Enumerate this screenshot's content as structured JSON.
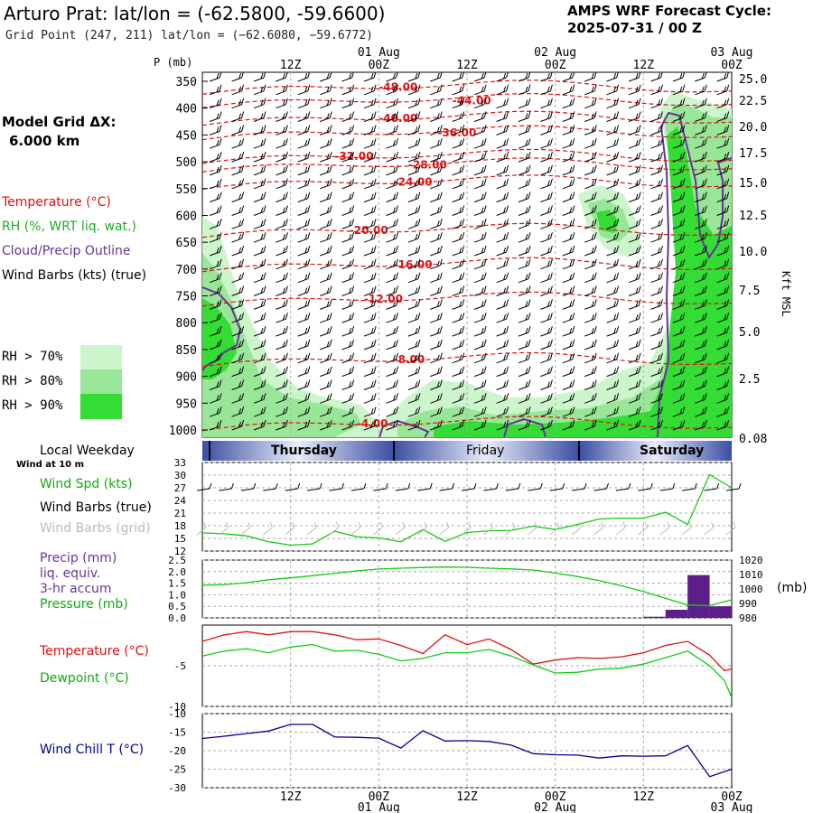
{
  "header": {
    "title": "Arturo Prat:  lat/lon = (-62.5800, -59.6600)",
    "subtitle": "Grid Point (247, 211) lat/lon = (−62.6080, −59.6772)",
    "forecast_label": "AMPS WRF Forecast Cycle:",
    "forecast_cycle": "2025-07-31 / 00  Z"
  },
  "left_panel": {
    "grid_label": "Model Grid ΔX:",
    "grid_value": "6.000 km",
    "legend": [
      {
        "text": "Temperature (°C)",
        "color": "#dd1111"
      },
      {
        "text": "RH (%, WRT liq. wat.)",
        "color": "#22aa22"
      },
      {
        "text": "Cloud/Precip Outline",
        "color": "#663399"
      },
      {
        "text": "Wind Barbs (kts) (true)",
        "color": "#000000"
      }
    ],
    "rh_legend": [
      {
        "text": "RH > 70%",
        "color": "#ccf5cc"
      },
      {
        "text": "RH > 80%",
        "color": "#99e699"
      },
      {
        "text": "RH > 90%",
        "color": "#33dd33"
      }
    ]
  },
  "colors": {
    "temperature": "#dd1111",
    "dewpoint": "#11cc11",
    "wind_chill": "#000099",
    "precip": "#5c1f8a",
    "cloud_outline": "#663399",
    "gridline": "#999999"
  },
  "time_axis": {
    "top_dates": [
      "01 Aug",
      "02 Aug",
      "03 Aug"
    ],
    "hour_ticks": [
      "12Z",
      "00Z",
      "12Z",
      "00Z",
      "12Z",
      "00Z"
    ],
    "bottom_dates": [
      "01 Aug",
      "02 Aug",
      "03 Aug"
    ],
    "pressure_axis_label": "P (mb)",
    "pressure_ticks": [
      "350",
      "400",
      "450",
      "500",
      "550",
      "600",
      "650",
      "700",
      "750",
      "800",
      "850",
      "900",
      "950",
      "1000"
    ],
    "kft_ticks": [
      "25.0",
      "22.5",
      "20.0",
      "17.5",
      "15.0",
      "12.5",
      "10.0",
      "7.5",
      "5.0",
      "2.5",
      "0.08"
    ],
    "kft_label": "Kft MSL"
  },
  "weekday_bar": {
    "label": "Local Weekday",
    "days": [
      "Thursday",
      "Friday",
      "Saturday"
    ]
  },
  "panel_labels": {
    "wind_at": "Wind at 10 m",
    "wind_spd": "Wind Spd (kts)",
    "wind_barbs_true": "Wind Barbs (true)",
    "wind_barbs_grid": "Wind Barbs (grid)",
    "precip": "Precip (mm)",
    "liq": "liq. equiv.",
    "accum": "3-hr accum",
    "pressure": "Pressure (mb)",
    "pressure_unit": "(mb)",
    "temperature": "Temperature (°C)",
    "dewpoint": "Dewpoint (°C)",
    "wind_chill": "Wind Chill T (°C)"
  },
  "chart_data": [
    {
      "type": "heatmap",
      "name": "cross-section",
      "y_axis": "pressure (mb)",
      "ylim": [
        1000,
        350
      ],
      "isotherm_labels": [
        "-48.00",
        "-44.00",
        "-40.00",
        "-36.00",
        "-32.00",
        "-28.00",
        "-24.00",
        "-20.00",
        "-16.00",
        "-12.00",
        "-8.00",
        "-4.00"
      ],
      "isotherm_levels": [
        -48,
        -44,
        -40,
        -36,
        -32,
        -28,
        -24,
        -20,
        -16,
        -12,
        -8,
        -4
      ],
      "isotherm_label_time_hours": [
        24,
        34,
        24,
        32,
        18,
        28,
        26,
        20,
        26,
        22,
        26,
        21
      ],
      "isotherm_label_pressure": [
        361,
        386,
        419,
        446,
        490,
        506,
        538,
        628,
        692,
        756,
        869,
        988
      ]
    },
    {
      "type": "line",
      "name": "wind-10m",
      "ylim": [
        12,
        33
      ],
      "y_ticks": [
        "33",
        "30",
        "27",
        "24",
        "21",
        "18",
        "15",
        "12"
      ],
      "x_hours": [
        0,
        3,
        6,
        9,
        12,
        15,
        18,
        21,
        24,
        27,
        30,
        33,
        36,
        39,
        42,
        45,
        48,
        51,
        54,
        57,
        60,
        63,
        66,
        69,
        72
      ],
      "series": [
        {
          "values": [
            16.3,
            16.1,
            15.6,
            14.2,
            13.4,
            13.7,
            16.7,
            15.4,
            15.1,
            14.2,
            17.1,
            14.3,
            16.4,
            16.8,
            16.9,
            17.9,
            17.1,
            18.3,
            19.6,
            19.8,
            19.8,
            21.2,
            18.3,
            30.1,
            27.0
          ]
        }
      ]
    },
    {
      "type": "bar",
      "name": "precip-pressure",
      "y_ticks_left": [
        "2.5",
        "2.0",
        "1.5",
        "1.0",
        "0.5",
        "0.0"
      ],
      "y_ticks_right": [
        "1020",
        "1010",
        "1000",
        "990",
        "980"
      ],
      "ylim": [
        0,
        2.5
      ],
      "ylim_right": [
        980,
        1020
      ],
      "precip_bars": [
        {
          "start_hour": 60,
          "end_hour": 63,
          "value": 0.05
        },
        {
          "start_hour": 63,
          "end_hour": 66,
          "value": 0.35
        },
        {
          "start_hour": 66,
          "end_hour": 69,
          "value": 1.85
        },
        {
          "start_hour": 69,
          "end_hour": 72,
          "value": 0.5
        }
      ],
      "pressure_x_hours": [
        0,
        3,
        6,
        9,
        12,
        15,
        18,
        21,
        24,
        27,
        30,
        33,
        36,
        39,
        42,
        45,
        48,
        51,
        54,
        57,
        60,
        63,
        66,
        69,
        72
      ],
      "pressure_values": [
        1002.6,
        1003.0,
        1004.3,
        1006.4,
        1007.7,
        1009.2,
        1010.9,
        1012.5,
        1013.8,
        1014.4,
        1014.9,
        1015.2,
        1015.0,
        1014.4,
        1013.9,
        1013.1,
        1011.0,
        1008.6,
        1005.8,
        1002.2,
        998.3,
        993.5,
        988.9,
        988.5,
        992.5
      ]
    },
    {
      "type": "line",
      "name": "temp-dewpoint",
      "y_ticks": [
        "-5",
        "-10"
      ],
      "ylim": [
        -10,
        0
      ],
      "x_hours": [
        0,
        3,
        6,
        9,
        12,
        15,
        18,
        21,
        24,
        27,
        30,
        33,
        36,
        39,
        42,
        45,
        48,
        51,
        54,
        57,
        60,
        63,
        66,
        69,
        71,
        72
      ],
      "series": [
        {
          "name": "Temperature (°C)",
          "values": [
            -2.0,
            -1.2,
            -0.8,
            -1.2,
            -0.8,
            -0.8,
            -1.2,
            -1.8,
            -1.7,
            -2.5,
            -3.5,
            -1.2,
            -2.4,
            -1.7,
            -3.0,
            -4.8,
            -4.3,
            -4.0,
            -4.1,
            -3.9,
            -3.4,
            -2.5,
            -2.0,
            -3.7,
            -5.6,
            -5.4
          ]
        },
        {
          "name": "Dewpoint (°C)",
          "values": [
            -3.8,
            -3.2,
            -2.9,
            -3.4,
            -2.7,
            -2.4,
            -3.2,
            -3.1,
            -3.6,
            -4.4,
            -4.1,
            -3.4,
            -3.4,
            -3.0,
            -3.8,
            -4.9,
            -5.9,
            -5.8,
            -5.4,
            -5.3,
            -4.8,
            -4.0,
            -3.2,
            -5.0,
            -6.8,
            -8.9
          ]
        }
      ]
    },
    {
      "type": "line",
      "name": "wind-chill",
      "y_ticks": [
        "-10",
        "-15",
        "-20",
        "-25",
        "-30"
      ],
      "ylim": [
        -30,
        -10
      ],
      "x_hours": [
        0,
        3,
        6,
        9,
        12,
        15,
        18,
        21,
        24,
        27,
        30,
        33,
        36,
        39,
        42,
        45,
        48,
        51,
        54,
        57,
        60,
        63,
        66,
        69,
        72
      ],
      "series": [
        {
          "values": [
            -16.7,
            -16.1,
            -15.4,
            -14.7,
            -12.9,
            -12.9,
            -16.3,
            -16.4,
            -16.6,
            -19.3,
            -14.6,
            -17.4,
            -17.3,
            -17.5,
            -18.5,
            -20.8,
            -21.1,
            -21.2,
            -22.0,
            -21.4,
            -21.5,
            -21.4,
            -18.6,
            -27.0,
            -25.0
          ]
        }
      ]
    }
  ]
}
